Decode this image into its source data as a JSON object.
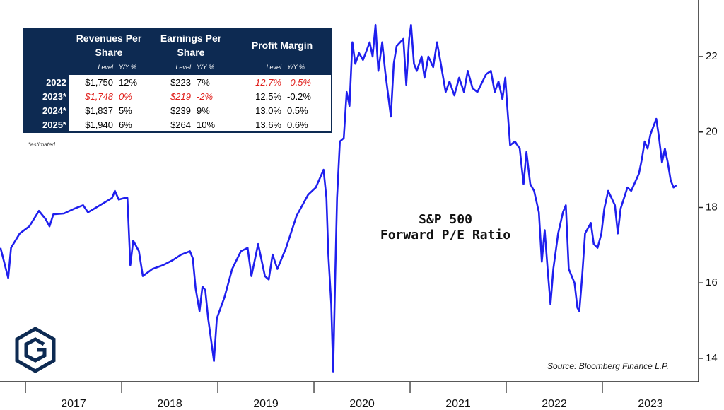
{
  "chart_data": {
    "type": "line",
    "annotations": [
      "S&P 500",
      "Forward P/E Ratio"
    ],
    "source": "Source: Bloomberg Finance L.P.",
    "x": [
      2016.74,
      2016.82,
      2016.85,
      2016.94,
      2017.04,
      2017.14,
      2017.21,
      2017.25,
      2017.29,
      2017.4,
      2017.51,
      2017.6,
      2017.65,
      2017.75,
      2017.9,
      2017.93,
      2017.97,
      2018.03,
      2018.06,
      2018.09,
      2018.12,
      2018.18,
      2018.22,
      2018.32,
      2018.43,
      2018.53,
      2018.62,
      2018.71,
      2018.74,
      2018.77,
      2018.81,
      2018.84,
      2018.87,
      2018.9,
      2018.96,
      2018.99,
      2019.07,
      2019.15,
      2019.24,
      2019.31,
      2019.35,
      2019.42,
      2019.49,
      2019.53,
      2019.57,
      2019.62,
      2019.71,
      2019.82,
      2019.94,
      2020.02,
      2020.1,
      2020.13,
      2020.15,
      2020.18,
      2020.2,
      2020.22,
      2020.24,
      2020.27,
      2020.31,
      2020.34,
      2020.37,
      2020.4,
      2020.43,
      2020.47,
      2020.51,
      2020.58,
      2020.61,
      2020.64,
      2020.67,
      2020.71,
      2020.74,
      2020.8,
      2020.83,
      2020.86,
      2020.93,
      2020.96,
      2020.99,
      2021.01,
      2021.04,
      2021.07,
      2021.12,
      2021.15,
      2021.19,
      2021.24,
      2021.28,
      2021.32,
      2021.37,
      2021.41,
      2021.46,
      2021.51,
      2021.56,
      2021.6,
      2021.65,
      2021.7,
      2021.79,
      2021.84,
      2021.88,
      2021.92,
      2021.96,
      2021.99,
      2022.01,
      2022.04,
      2022.09,
      2022.14,
      2022.18,
      2022.21,
      2022.25,
      2022.29,
      2022.34,
      2022.37,
      2022.4,
      2022.43,
      2022.46,
      2022.49,
      2022.54,
      2022.59,
      2022.62,
      2022.65,
      2022.71,
      2022.74,
      2022.76,
      2022.79,
      2022.82,
      2022.88,
      2022.91,
      2022.95,
      2022.99,
      2023.02,
      2023.06,
      2023.13,
      2023.16,
      2023.19,
      2023.26,
      2023.3,
      2023.38,
      2023.41,
      2023.44,
      2023.47,
      2023.5,
      2023.56,
      2023.59,
      2023.62,
      2023.65,
      2023.68,
      2023.71,
      2023.74,
      2023.77
    ],
    "series": [
      {
        "color": "#1f1fee",
        "values": [
          16.93,
          16.13,
          16.93,
          17.31,
          17.5,
          17.91,
          17.69,
          17.5,
          17.82,
          17.84,
          17.97,
          18.06,
          17.87,
          18.02,
          18.25,
          18.44,
          18.21,
          18.25,
          18.25,
          16.47,
          17.12,
          16.84,
          16.18,
          16.37,
          16.47,
          16.6,
          16.75,
          16.84,
          16.65,
          15.85,
          15.25,
          15.9,
          15.81,
          15.06,
          13.93,
          15.06,
          15.62,
          16.37,
          16.84,
          16.93,
          16.18,
          17.03,
          16.18,
          16.09,
          16.75,
          16.37,
          16.93,
          17.78,
          18.34,
          18.53,
          19.0,
          18.25,
          16.75,
          15.43,
          13.65,
          16.0,
          18.25,
          19.75,
          19.84,
          21.06,
          20.69,
          22.38,
          21.81,
          22.09,
          21.91,
          22.38,
          22.0,
          22.84,
          21.62,
          22.38,
          21.62,
          20.41,
          21.81,
          22.28,
          22.47,
          21.25,
          22.47,
          22.84,
          21.81,
          21.62,
          22.0,
          21.44,
          22.0,
          21.72,
          22.38,
          21.81,
          21.06,
          21.34,
          20.97,
          21.44,
          21.06,
          21.62,
          21.16,
          21.06,
          21.53,
          21.62,
          21.06,
          21.34,
          20.87,
          21.44,
          20.69,
          19.65,
          19.75,
          19.56,
          18.62,
          19.47,
          18.62,
          18.44,
          17.87,
          16.56,
          17.4,
          16.37,
          15.43,
          16.37,
          17.31,
          17.87,
          18.06,
          16.37,
          16.0,
          15.34,
          15.25,
          16.18,
          17.31,
          17.59,
          17.03,
          16.93,
          17.31,
          17.97,
          18.44,
          18.06,
          17.31,
          17.97,
          18.53,
          18.44,
          18.9,
          19.28,
          19.75,
          19.56,
          19.94,
          20.35,
          19.84,
          19.19,
          19.56,
          19.19,
          18.72,
          18.53,
          18.59
        ]
      }
    ],
    "xlim": [
      2016.735,
      2024.0
    ],
    "xticks": [
      {
        "value": 2017.5,
        "label": "2017"
      },
      {
        "value": 2018.5,
        "label": "2018"
      },
      {
        "value": 2019.5,
        "label": "2019"
      },
      {
        "value": 2020.5,
        "label": "2020"
      },
      {
        "value": 2021.5,
        "label": "2021"
      },
      {
        "value": 2022.5,
        "label": "2022"
      },
      {
        "value": 2023.5,
        "label": "2023"
      }
    ],
    "ylim": [
      13.38,
      23.5
    ],
    "yticks": [
      14,
      16,
      18,
      20,
      22
    ]
  },
  "table": {
    "headers": [
      "Revenues Per Share",
      "Earnings Per Share",
      "Profit Margin"
    ],
    "subheaders": [
      "Level",
      "Y/Y %",
      "Level",
      "Y/Y %",
      "Level",
      "Y/Y %"
    ],
    "rows": [
      [
        "2022",
        "$1,750",
        "12%",
        "$223",
        "7%",
        "12.7%",
        "-0.5%"
      ],
      [
        "2023*",
        "$1,748",
        "0%",
        "$219",
        "-2%",
        "12.5%",
        "-0.2%"
      ],
      [
        "2024*",
        "$1,837",
        "5%",
        "$239",
        "9%",
        "13.0%",
        "0.5%"
      ],
      [
        "2025*",
        "$1,940",
        "6%",
        "$264",
        "10%",
        "13.6%",
        "0.6%"
      ]
    ],
    "footnote": "*estimated"
  }
}
